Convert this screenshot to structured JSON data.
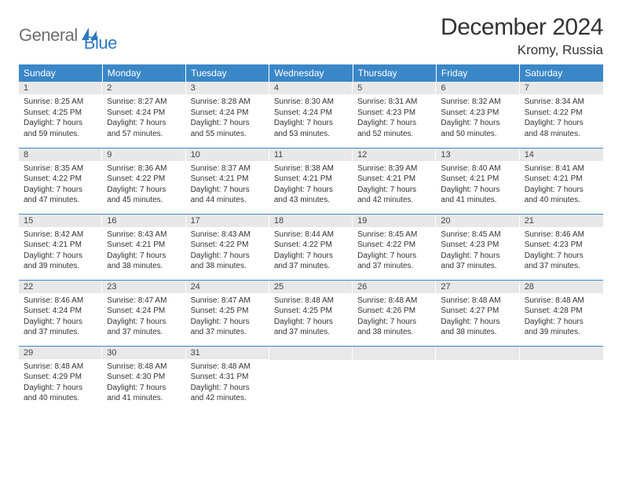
{
  "logo": {
    "text1": "General",
    "text2": "Blue",
    "icon_color": "#2f78c2",
    "text1_color": "#6f6f6f"
  },
  "header": {
    "title": "December 2024",
    "location": "Kromy, Russia"
  },
  "colors": {
    "header_bg": "#3a87c8",
    "header_text": "#ffffff",
    "daynum_bg": "#e8e8e8",
    "row_border": "#3a87c8",
    "body_text": "#333333"
  },
  "weekdays": [
    "Sunday",
    "Monday",
    "Tuesday",
    "Wednesday",
    "Thursday",
    "Friday",
    "Saturday"
  ],
  "weeks": [
    [
      {
        "n": "1",
        "sunrise": "Sunrise: 8:25 AM",
        "sunset": "Sunset: 4:25 PM",
        "daylight": "Daylight: 7 hours and 59 minutes."
      },
      {
        "n": "2",
        "sunrise": "Sunrise: 8:27 AM",
        "sunset": "Sunset: 4:24 PM",
        "daylight": "Daylight: 7 hours and 57 minutes."
      },
      {
        "n": "3",
        "sunrise": "Sunrise: 8:28 AM",
        "sunset": "Sunset: 4:24 PM",
        "daylight": "Daylight: 7 hours and 55 minutes."
      },
      {
        "n": "4",
        "sunrise": "Sunrise: 8:30 AM",
        "sunset": "Sunset: 4:24 PM",
        "daylight": "Daylight: 7 hours and 53 minutes."
      },
      {
        "n": "5",
        "sunrise": "Sunrise: 8:31 AM",
        "sunset": "Sunset: 4:23 PM",
        "daylight": "Daylight: 7 hours and 52 minutes."
      },
      {
        "n": "6",
        "sunrise": "Sunrise: 8:32 AM",
        "sunset": "Sunset: 4:23 PM",
        "daylight": "Daylight: 7 hours and 50 minutes."
      },
      {
        "n": "7",
        "sunrise": "Sunrise: 8:34 AM",
        "sunset": "Sunset: 4:22 PM",
        "daylight": "Daylight: 7 hours and 48 minutes."
      }
    ],
    [
      {
        "n": "8",
        "sunrise": "Sunrise: 8:35 AM",
        "sunset": "Sunset: 4:22 PM",
        "daylight": "Daylight: 7 hours and 47 minutes."
      },
      {
        "n": "9",
        "sunrise": "Sunrise: 8:36 AM",
        "sunset": "Sunset: 4:22 PM",
        "daylight": "Daylight: 7 hours and 45 minutes."
      },
      {
        "n": "10",
        "sunrise": "Sunrise: 8:37 AM",
        "sunset": "Sunset: 4:21 PM",
        "daylight": "Daylight: 7 hours and 44 minutes."
      },
      {
        "n": "11",
        "sunrise": "Sunrise: 8:38 AM",
        "sunset": "Sunset: 4:21 PM",
        "daylight": "Daylight: 7 hours and 43 minutes."
      },
      {
        "n": "12",
        "sunrise": "Sunrise: 8:39 AM",
        "sunset": "Sunset: 4:21 PM",
        "daylight": "Daylight: 7 hours and 42 minutes."
      },
      {
        "n": "13",
        "sunrise": "Sunrise: 8:40 AM",
        "sunset": "Sunset: 4:21 PM",
        "daylight": "Daylight: 7 hours and 41 minutes."
      },
      {
        "n": "14",
        "sunrise": "Sunrise: 8:41 AM",
        "sunset": "Sunset: 4:21 PM",
        "daylight": "Daylight: 7 hours and 40 minutes."
      }
    ],
    [
      {
        "n": "15",
        "sunrise": "Sunrise: 8:42 AM",
        "sunset": "Sunset: 4:21 PM",
        "daylight": "Daylight: 7 hours and 39 minutes."
      },
      {
        "n": "16",
        "sunrise": "Sunrise: 8:43 AM",
        "sunset": "Sunset: 4:21 PM",
        "daylight": "Daylight: 7 hours and 38 minutes."
      },
      {
        "n": "17",
        "sunrise": "Sunrise: 8:43 AM",
        "sunset": "Sunset: 4:22 PM",
        "daylight": "Daylight: 7 hours and 38 minutes."
      },
      {
        "n": "18",
        "sunrise": "Sunrise: 8:44 AM",
        "sunset": "Sunset: 4:22 PM",
        "daylight": "Daylight: 7 hours and 37 minutes."
      },
      {
        "n": "19",
        "sunrise": "Sunrise: 8:45 AM",
        "sunset": "Sunset: 4:22 PM",
        "daylight": "Daylight: 7 hours and 37 minutes."
      },
      {
        "n": "20",
        "sunrise": "Sunrise: 8:45 AM",
        "sunset": "Sunset: 4:23 PM",
        "daylight": "Daylight: 7 hours and 37 minutes."
      },
      {
        "n": "21",
        "sunrise": "Sunrise: 8:46 AM",
        "sunset": "Sunset: 4:23 PM",
        "daylight": "Daylight: 7 hours and 37 minutes."
      }
    ],
    [
      {
        "n": "22",
        "sunrise": "Sunrise: 8:46 AM",
        "sunset": "Sunset: 4:24 PM",
        "daylight": "Daylight: 7 hours and 37 minutes."
      },
      {
        "n": "23",
        "sunrise": "Sunrise: 8:47 AM",
        "sunset": "Sunset: 4:24 PM",
        "daylight": "Daylight: 7 hours and 37 minutes."
      },
      {
        "n": "24",
        "sunrise": "Sunrise: 8:47 AM",
        "sunset": "Sunset: 4:25 PM",
        "daylight": "Daylight: 7 hours and 37 minutes."
      },
      {
        "n": "25",
        "sunrise": "Sunrise: 8:48 AM",
        "sunset": "Sunset: 4:25 PM",
        "daylight": "Daylight: 7 hours and 37 minutes."
      },
      {
        "n": "26",
        "sunrise": "Sunrise: 8:48 AM",
        "sunset": "Sunset: 4:26 PM",
        "daylight": "Daylight: 7 hours and 38 minutes."
      },
      {
        "n": "27",
        "sunrise": "Sunrise: 8:48 AM",
        "sunset": "Sunset: 4:27 PM",
        "daylight": "Daylight: 7 hours and 38 minutes."
      },
      {
        "n": "28",
        "sunrise": "Sunrise: 8:48 AM",
        "sunset": "Sunset: 4:28 PM",
        "daylight": "Daylight: 7 hours and 39 minutes."
      }
    ],
    [
      {
        "n": "29",
        "sunrise": "Sunrise: 8:48 AM",
        "sunset": "Sunset: 4:29 PM",
        "daylight": "Daylight: 7 hours and 40 minutes."
      },
      {
        "n": "30",
        "sunrise": "Sunrise: 8:48 AM",
        "sunset": "Sunset: 4:30 PM",
        "daylight": "Daylight: 7 hours and 41 minutes."
      },
      {
        "n": "31",
        "sunrise": "Sunrise: 8:48 AM",
        "sunset": "Sunset: 4:31 PM",
        "daylight": "Daylight: 7 hours and 42 minutes."
      },
      null,
      null,
      null,
      null
    ]
  ]
}
